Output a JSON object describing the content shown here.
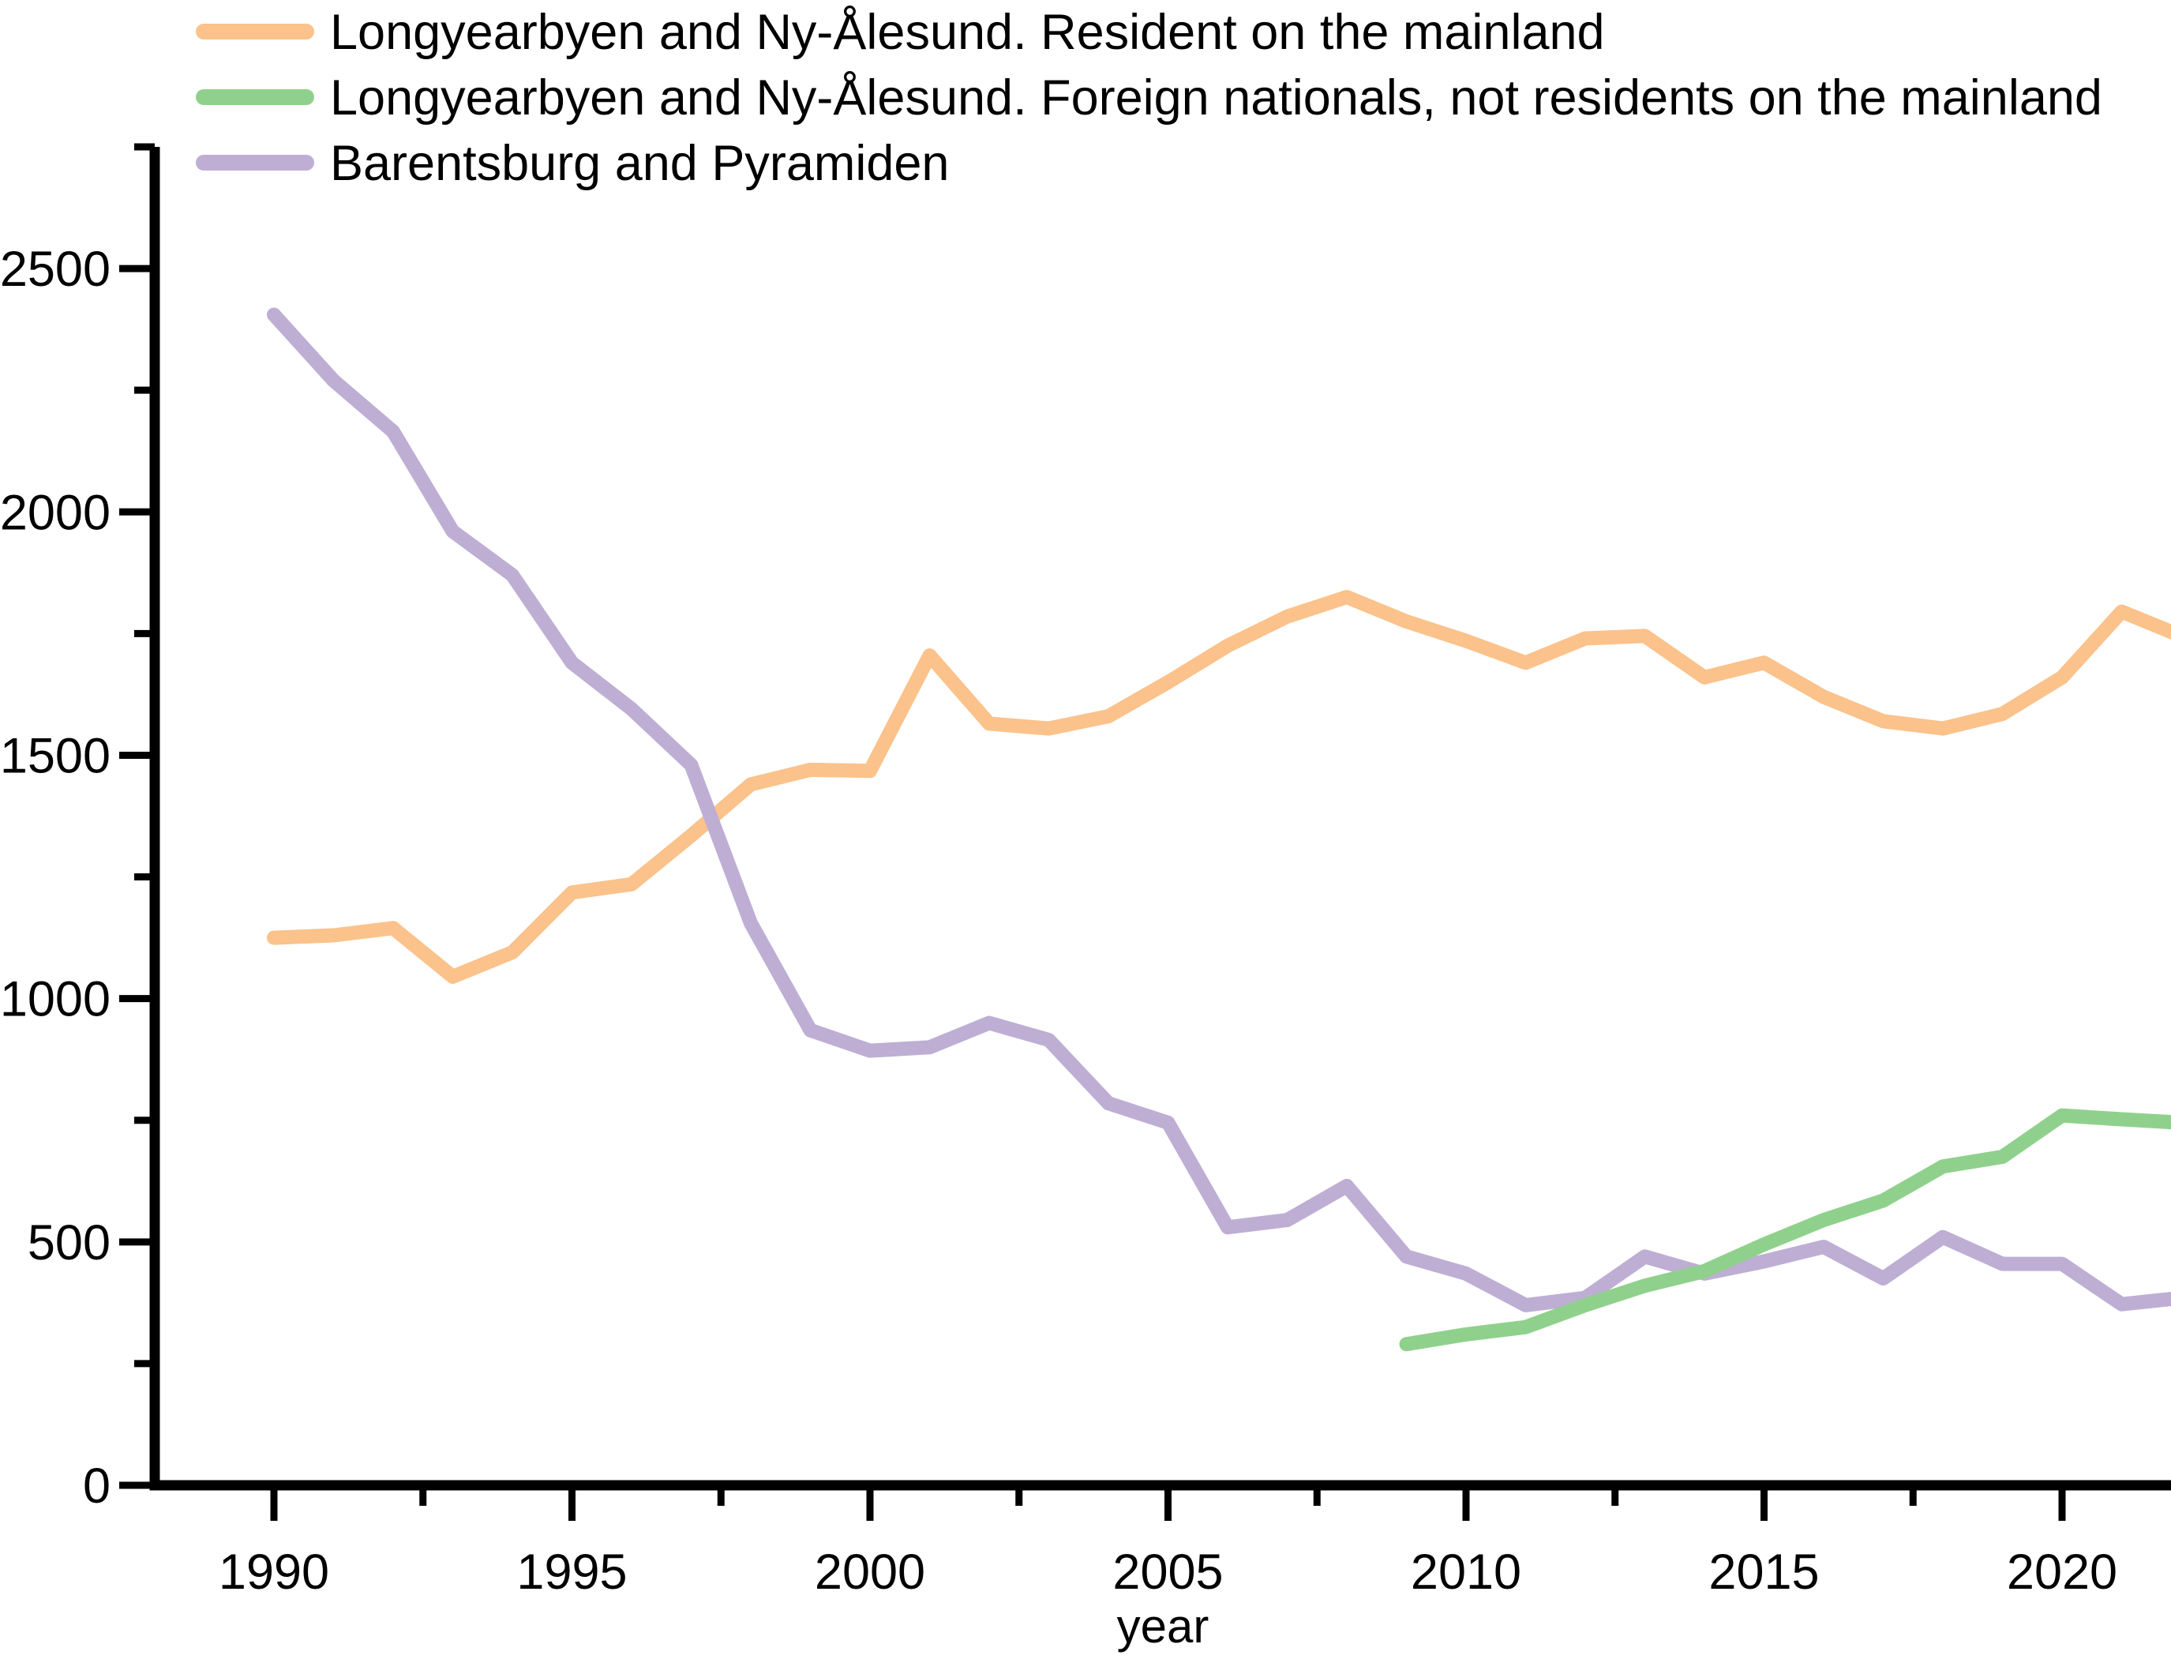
{
  "chart_data": {
    "type": "line",
    "title": "",
    "xlabel": "year",
    "ylabel": "",
    "xlim": [
      1988,
      2022.3
    ],
    "ylim": [
      0,
      2750
    ],
    "grid": false,
    "legend_position": "top-left",
    "axis_color": "#000000",
    "x_major_ticks": [
      1990,
      1995,
      2000,
      2005,
      2010,
      2015,
      2020
    ],
    "x_minor_ticks": [
      1992.5,
      1997.5,
      2002.5,
      2007.5,
      2012.5,
      2017.5
    ],
    "y_major_ticks": [
      0,
      500,
      1000,
      1500,
      2000,
      2500
    ],
    "y_minor_ticks": [
      250,
      750,
      1250,
      1750,
      2250,
      2750
    ],
    "series": [
      {
        "name": "Longyearbyen and Ny-Ålesund. Resident on the mainland",
        "color": "#FBC28B",
        "x": [
          1990,
          1991,
          1992,
          1993,
          1994,
          1995,
          1996,
          1997,
          1998,
          1999,
          2000,
          2001,
          2002,
          2003,
          2004,
          2005,
          2006,
          2007,
          2008,
          2009,
          2010,
          2011,
          2012,
          2013,
          2014,
          2015,
          2016,
          2017,
          2018,
          2019,
          2020,
          2021,
          2022
        ],
        "values": [
          1125,
          1130,
          1145,
          1045,
          1095,
          1218,
          1235,
          1335,
          1440,
          1470,
          1468,
          1705,
          1565,
          1555,
          1580,
          1650,
          1725,
          1785,
          1825,
          1775,
          1735,
          1690,
          1740,
          1745,
          1660,
          1690,
          1620,
          1570,
          1555,
          1585,
          1660,
          1795,
          1745
        ]
      },
      {
        "name": "Longyearbyen and Ny-Ålesund. Foreign nationals, not residents on the mainland",
        "color": "#8FD18C",
        "x": [
          2009,
          2010,
          2011,
          2012,
          2013,
          2014,
          2015,
          2016,
          2017,
          2018,
          2019,
          2020,
          2021,
          2022
        ],
        "values": [
          290,
          310,
          325,
          370,
          410,
          440,
          495,
          545,
          585,
          655,
          675,
          760,
          752,
          745
        ]
      },
      {
        "name": "Barentsburg and Pyramiden",
        "color": "#BEAED4",
        "x": [
          1990,
          1991,
          1992,
          1993,
          1994,
          1995,
          1996,
          1997,
          1998,
          1999,
          2000,
          2001,
          2002,
          2003,
          2004,
          2005,
          2006,
          2007,
          2008,
          2009,
          2010,
          2011,
          2012,
          2013,
          2014,
          2015,
          2016,
          2017,
          2018,
          2019,
          2020,
          2021,
          2022
        ],
        "values": [
          2405,
          2270,
          2165,
          1960,
          1870,
          1690,
          1595,
          1480,
          1155,
          935,
          893,
          900,
          950,
          915,
          785,
          745,
          530,
          545,
          615,
          470,
          435,
          370,
          385,
          470,
          435,
          460,
          490,
          425,
          510,
          455,
          455,
          372,
          385
        ]
      }
    ]
  }
}
